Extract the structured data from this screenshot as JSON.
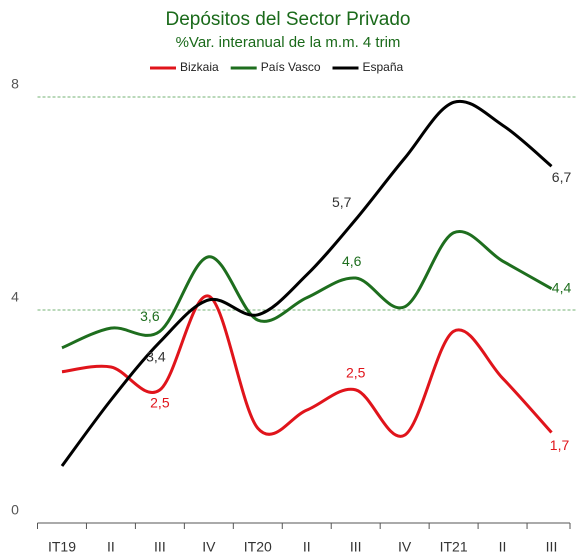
{
  "chart_data": {
    "type": "line",
    "title": "Depósitos del Sector Privado",
    "subtitle": "%Var. interanual de la m.m. 4 trim",
    "categories": [
      "IT19",
      "II",
      "III",
      "IV",
      "IT20",
      "II",
      "III",
      "IV",
      "IT21",
      "II",
      "III"
    ],
    "series": [
      {
        "name": "Bizkaia",
        "color": "#e0141b",
        "values": [
          2.84,
          2.93,
          2.5,
          4.26,
          1.78,
          2.12,
          2.5,
          1.65,
          3.6,
          2.72,
          1.7
        ],
        "value_labels": [
          null,
          null,
          "2,5",
          null,
          null,
          null,
          "2,5",
          null,
          null,
          null,
          "1,7"
        ]
      },
      {
        "name": "País Vasco",
        "color": "#1e6e1e",
        "values": [
          3.29,
          3.66,
          3.6,
          5.0,
          3.81,
          4.23,
          4.6,
          4.06,
          5.45,
          4.92,
          4.4
        ],
        "value_labels": [
          null,
          null,
          "3,6",
          null,
          null,
          null,
          "4,6",
          null,
          null,
          null,
          "4,4"
        ]
      },
      {
        "name": "España",
        "color": "#000000",
        "values": [
          1.07,
          2.31,
          3.4,
          4.19,
          3.91,
          4.66,
          5.7,
          6.85,
          7.9,
          7.47,
          6.7
        ],
        "value_labels": [
          null,
          null,
          "3,4",
          null,
          null,
          null,
          "5,7",
          null,
          null,
          null,
          "6,7"
        ]
      }
    ],
    "ylim": [
      0,
      8
    ],
    "yticks": [
      0,
      4,
      8
    ],
    "grid": true
  }
}
